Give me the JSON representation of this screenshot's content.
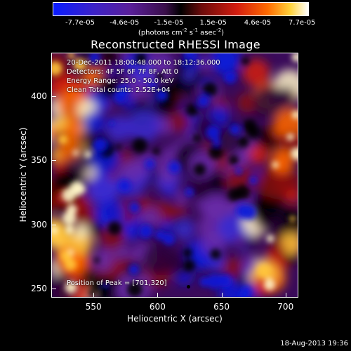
{
  "colorbar": {
    "ticks": [
      "-7.7e-05",
      "-4.6e-05",
      "-1.5e-05",
      "1.5e-05",
      "4.6e-05",
      "7.7e-05"
    ],
    "unit_prefix": "(photons cm",
    "unit_exp1": "-2",
    "unit_mid": " s",
    "unit_exp2": "-1",
    "unit_suffix": " asec",
    "unit_exp3": "-2",
    "unit_close": ")"
  },
  "chart_data": {
    "type": "heatmap",
    "title": "Reconstructed RHESSI Image",
    "xlabel": "Heliocentric X (arcsec)",
    "ylabel": "Heliocentric Y (arcsec)",
    "xlim": [
      517,
      710
    ],
    "ylim": [
      243,
      434
    ],
    "x_ticks": [
      "550",
      "600",
      "650",
      "700"
    ],
    "y_ticks": [
      "250",
      "300",
      "350",
      "400"
    ],
    "value_range": [
      -7.7e-05,
      7.7e-05
    ],
    "peak": [
      701,
      320
    ],
    "info_lines": [
      "20-Dec-2011 18:00:48.000 to 18:12:36.000",
      "Detectors: 4F 5F 6F 7F 8F, Att 0",
      "Energy Range: 25.0 - 50.0 keV",
      "Clean    Total counts: 2.52E+04"
    ],
    "peak_label": "Position of Peak = [701,320]"
  },
  "footer": {
    "datestamp": "18-Aug-2013 19:36"
  }
}
